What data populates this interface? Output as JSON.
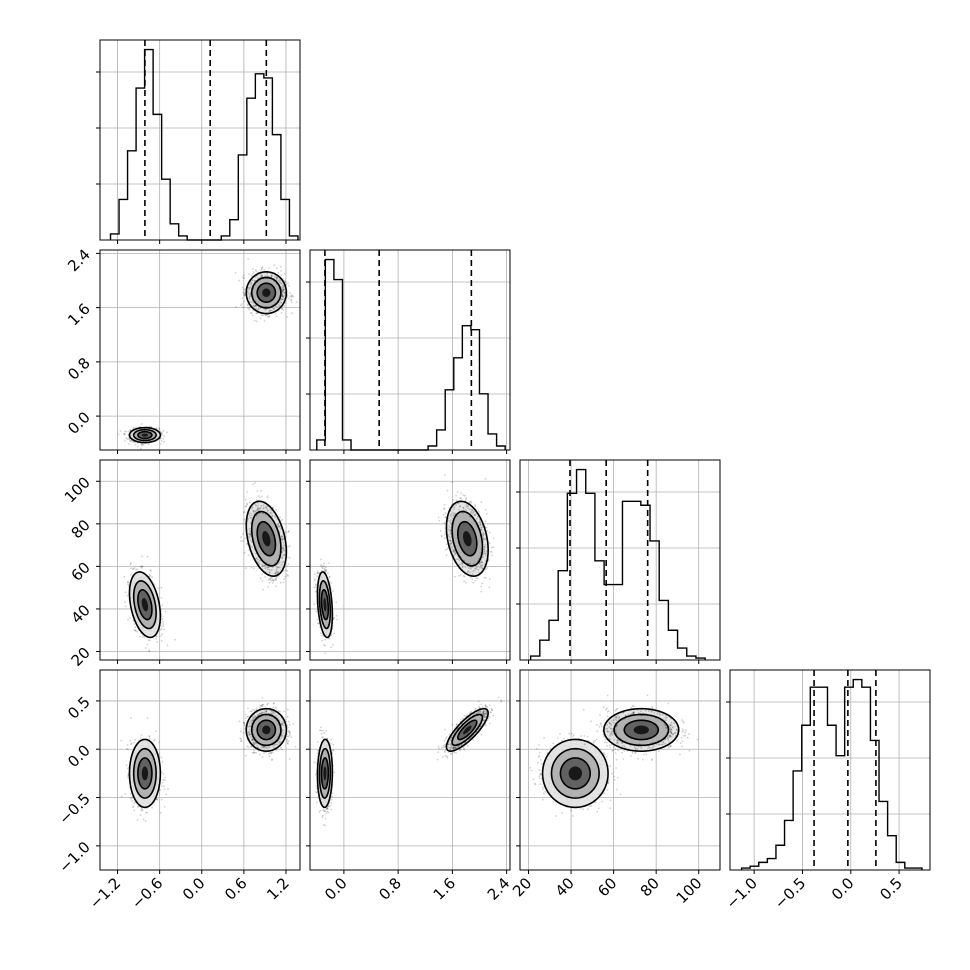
{
  "chart_data": {
    "type": "corner",
    "variables": 4,
    "quantile_lines": "dashed",
    "grid": true,
    "colors": {
      "line": "#000000",
      "grid": "#b0b0b0",
      "density": "#000000"
    },
    "axis_ranges": [
      [
        -1.45,
        1.4
      ],
      [
        -0.5,
        2.45
      ],
      [
        16,
        110
      ],
      [
        -1.25,
        0.82
      ]
    ],
    "x_tick_labels": [
      [
        "−1.2",
        "−0.6",
        "0.0",
        "0.6",
        "1.2"
      ],
      [
        "0.0",
        "0.8",
        "1.6",
        "2.4"
      ],
      [
        "20",
        "40",
        "60",
        "80",
        "100"
      ],
      [
        "−1.0",
        "−0.5",
        "0.0",
        "0.5"
      ]
    ],
    "y_tick_labels": [
      [
        "2.4",
        "1.6",
        "0.8",
        "0.0"
      ],
      [
        "100",
        "80",
        "60",
        "40",
        "20"
      ],
      [
        "0.5",
        "0.0",
        "−0.5",
        "−1.0"
      ]
    ],
    "histograms": [
      {
        "var": 0,
        "quantiles": [
          -0.81,
          0.12,
          0.92
        ],
        "bin_start": -1.3,
        "bin_width": 0.1214,
        "counts": [
          0.03,
          0.2,
          0.44,
          0.75,
          0.94,
          0.62,
          0.3,
          0.08,
          0.02,
          0,
          0,
          0,
          0,
          0.02,
          0.1,
          0.42,
          0.7,
          0.82,
          0.8,
          0.52,
          0.2,
          0.02
        ]
      },
      {
        "var": 1,
        "quantiles": [
          -0.28,
          0.52,
          1.88
        ],
        "bin_start": -0.4,
        "bin_width": 0.1263,
        "counts": [
          0.05,
          0.95,
          0.85,
          0.05,
          0,
          0,
          0,
          0,
          0,
          0,
          0,
          0,
          0,
          0.02,
          0.1,
          0.3,
          0.46,
          0.62,
          0.6,
          0.28,
          0.08,
          0.02
        ]
      },
      {
        "var": 2,
        "quantiles": [
          39.5,
          56.5,
          76
        ],
        "bin_start": 21,
        "bin_width": 4.316,
        "counts": [
          0.02,
          0.1,
          0.2,
          0.45,
          0.84,
          0.96,
          0.84,
          0.5,
          0.38,
          0.38,
          0.8,
          0.8,
          0.78,
          0.6,
          0.3,
          0.15,
          0.06,
          0.02,
          0.01
        ]
      },
      {
        "var": 3,
        "quantiles": [
          -0.38,
          -0.03,
          0.26
        ],
        "bin_start": -1.13,
        "bin_width": 0.0889,
        "counts": [
          0.01,
          0.02,
          0.04,
          0.06,
          0.13,
          0.26,
          0.52,
          0.76,
          0.96,
          0.96,
          0.76,
          0.6,
          0.96,
          1.0,
          0.96,
          0.68,
          0.36,
          0.18,
          0.04,
          0.01,
          0.01
        ]
      }
    ],
    "clusters": [
      {
        "means": [
          -0.81,
          -0.28,
          42,
          -0.25
        ],
        "stds": [
          0.1,
          0.05,
          7,
          0.16
        ]
      },
      {
        "means": [
          0.92,
          1.82,
          73,
          0.2
        ],
        "stds": [
          0.13,
          0.14,
          8,
          0.1
        ]
      }
    ],
    "correlations": [
      [
        0,
        2,
        -0.35
      ],
      [
        1,
        3,
        0.8
      ],
      [
        1,
        2,
        -0.3
      ]
    ]
  }
}
